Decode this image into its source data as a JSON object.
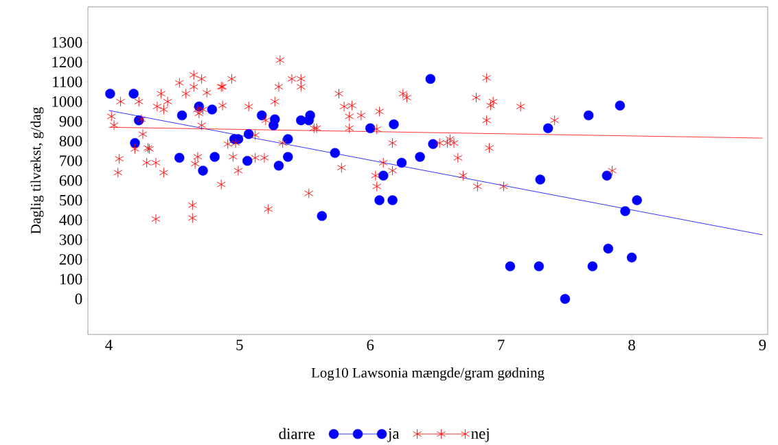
{
  "chart_data": {
    "type": "scatter",
    "xlabel": "Log10 Lawsonia mængde/gram gødning",
    "ylabel": "Daglig tilvækst, g/dag",
    "legend_title": "diarre",
    "legend": "bottom",
    "grid": false,
    "xlim": [
      3.84,
      9.04
    ],
    "ylim": [
      -180,
      1480
    ],
    "xticks": [
      4,
      5,
      6,
      7,
      8,
      9
    ],
    "yticks": [
      0,
      100,
      200,
      300,
      400,
      500,
      600,
      700,
      800,
      900,
      1000,
      1100,
      1200,
      1300
    ],
    "series": [
      {
        "name": "ja",
        "type": "scatter",
        "color": "#0000ff",
        "marker": "circle",
        "x": [
          4.01,
          4.19,
          4.23,
          4.2,
          4.56,
          4.69,
          4.79,
          4.54,
          4.72,
          4.81,
          5.06,
          4.96,
          4.99,
          5.07,
          5.17,
          5.27,
          5.26,
          5.37,
          5.37,
          5.3,
          5.47,
          5.53,
          5.54,
          6.46,
          6.0,
          6.18,
          5.73,
          6.48,
          6.38,
          6.24,
          6.1,
          6.07,
          6.17,
          5.63,
          7.07,
          7.91,
          7.67,
          7.36,
          7.3,
          7.81,
          8.04,
          7.95,
          7.82,
          8.0,
          7.29,
          7.7,
          7.49
        ],
        "values": [
          1040,
          1040,
          905,
          790,
          930,
          975,
          960,
          715,
          650,
          720,
          700,
          810,
          810,
          835,
          930,
          910,
          880,
          810,
          720,
          675,
          905,
          905,
          930,
          1115,
          865,
          885,
          740,
          785,
          720,
          690,
          625,
          500,
          500,
          420,
          165,
          980,
          930,
          865,
          605,
          625,
          500,
          445,
          255,
          210,
          165,
          165,
          0
        ]
      },
      {
        "name": "nej",
        "type": "scatter",
        "color": "#ff0000",
        "marker": "cross",
        "x": [
          5.31,
          4.65,
          4.71,
          4.54,
          4.94,
          5.4,
          5.47,
          5.47,
          5.3,
          4.65,
          4.87,
          4.86,
          4.4,
          4.59,
          4.75,
          4.09,
          4.23,
          4.45,
          5.27,
          4.37,
          4.42,
          4.87,
          5.07,
          4.68,
          4.69,
          4.72,
          4.02,
          4.04,
          4.25,
          4.71,
          5.2,
          5.57,
          4.26,
          5.12,
          4.2,
          4.3,
          4.31,
          4.91,
          4.97,
          5.33,
          4.08,
          4.29,
          4.36,
          4.68,
          4.66,
          4.95,
          5.12,
          5.19,
          4.07,
          4.42,
          4.99,
          4.86,
          5.53,
          4.64,
          4.64,
          5.22,
          4.36,
          6.89,
          5.76,
          6.25,
          6.28,
          6.81,
          6.92,
          6.94,
          7.15,
          5.8,
          5.86,
          6.07,
          5.84,
          5.93,
          6.89,
          5.59,
          5.84,
          6.05,
          6.17,
          6.53,
          6.61,
          6.59,
          6.64,
          6.91,
          5.78,
          6.1,
          6.17,
          6.04,
          6.67,
          6.05,
          6.71,
          6.82,
          7.02,
          7.41,
          7.85
        ],
        "values": [
          1210,
          1135,
          1115,
          1095,
          1115,
          1115,
          1115,
          1075,
          1075,
          1075,
          1075,
          1075,
          1040,
          1040,
          1045,
          1000,
          1000,
          1000,
          1000,
          975,
          960,
          980,
          975,
          960,
          940,
          960,
          925,
          880,
          910,
          880,
          905,
          865,
          835,
          830,
          760,
          765,
          760,
          785,
          790,
          790,
          710,
          690,
          690,
          720,
          685,
          720,
          715,
          715,
          640,
          640,
          650,
          580,
          535,
          475,
          410,
          455,
          405,
          1120,
          1040,
          1040,
          1020,
          1020,
          980,
          1000,
          975,
          975,
          980,
          950,
          925,
          930,
          905,
          865,
          865,
          860,
          790,
          790,
          810,
          790,
          790,
          765,
          665,
          690,
          650,
          625,
          715,
          570,
          625,
          570,
          570,
          905,
          650
        ]
      },
      {
        "type": "line",
        "color": "#0000ff",
        "x": [
          4,
          9
        ],
        "values": [
          955,
          325
        ]
      },
      {
        "type": "line",
        "color": "#ff0000",
        "x": [
          4,
          9
        ],
        "values": [
          870,
          815
        ]
      }
    ]
  }
}
